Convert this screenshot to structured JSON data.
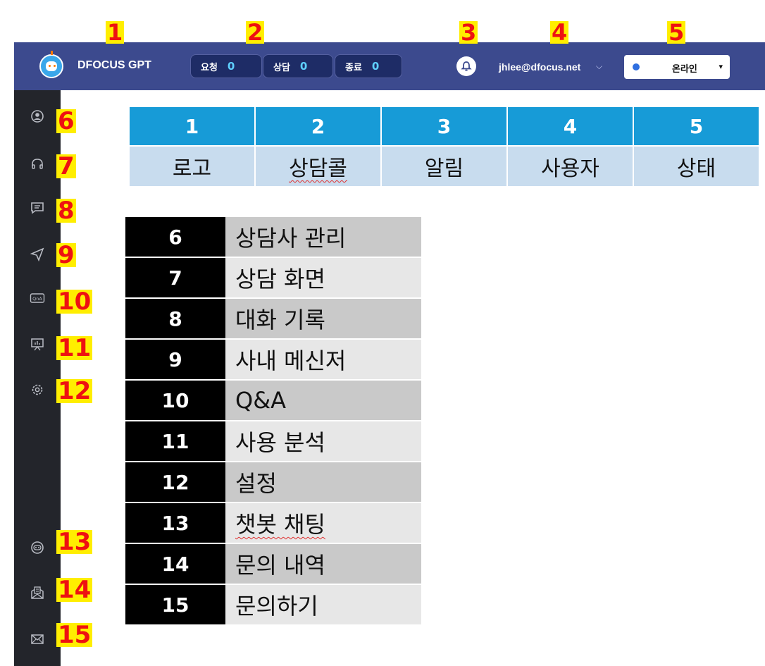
{
  "colors": {
    "header_bg": "#3c4a8e",
    "sidebar_bg": "#23252b",
    "accent": "#179bd7",
    "status_dot": "#2f6fe0"
  },
  "header": {
    "logo_text": "DFOCUS GPT",
    "counters": [
      {
        "label": "요청",
        "count": "0"
      },
      {
        "label": "상담",
        "count": "0"
      },
      {
        "label": "종료",
        "count": "0"
      }
    ],
    "bell_icon": "bell-icon",
    "user_email": "jhlee@dfocus.net",
    "user_chevron": "⌵",
    "status": {
      "label": "온라인",
      "caret": "▾"
    }
  },
  "top_callouts": [
    "1",
    "2",
    "3",
    "4",
    "5"
  ],
  "side_callouts": [
    "6",
    "7",
    "8",
    "9",
    "10",
    "11",
    "12",
    "13",
    "14",
    "15"
  ],
  "sidebar_icons": [
    "user-circle-icon",
    "headset-icon",
    "chat-icon",
    "send-icon",
    "qna-icon",
    "presentation-chart-icon",
    "gear-icon",
    "chatbot-icon",
    "document-envelope-icon",
    "mail-icon"
  ],
  "legend_top": {
    "numbers": [
      "1",
      "2",
      "3",
      "4",
      "5"
    ],
    "labels": [
      "로고",
      "상담콜",
      "알림",
      "사용자",
      "상태"
    ]
  },
  "legend_side": [
    {
      "num": "6",
      "name": "상담사 관리"
    },
    {
      "num": "7",
      "name": "상담 화면"
    },
    {
      "num": "8",
      "name": "대화 기록"
    },
    {
      "num": "9",
      "name": "사내 메신저"
    },
    {
      "num": "10",
      "name": "Q&A"
    },
    {
      "num": "11",
      "name": "사용 분석"
    },
    {
      "num": "12",
      "name": "설정"
    },
    {
      "num": "13",
      "name": "챗봇 채팅"
    },
    {
      "num": "14",
      "name": "문의 내역"
    },
    {
      "num": "15",
      "name": "문의하기"
    }
  ]
}
